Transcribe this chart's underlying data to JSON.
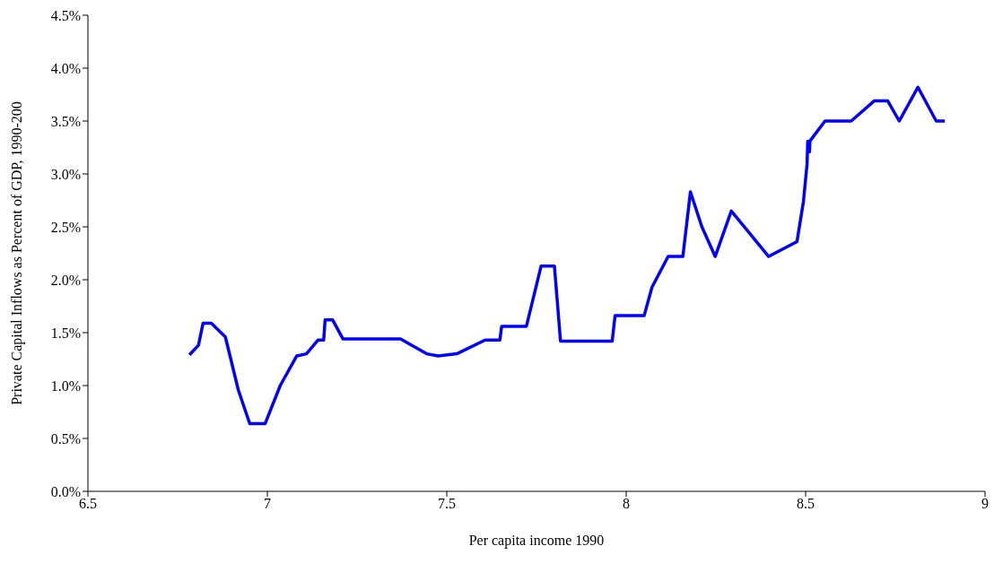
{
  "chart_data": {
    "type": "line",
    "xlabel": "Per capita income 1990",
    "ylabel": "Private Capital Inflows as Percent of GDP, 1990-200",
    "x": [
      6.783,
      6.808,
      6.821,
      6.844,
      6.883,
      6.919,
      6.951,
      6.994,
      7.036,
      7.082,
      7.109,
      7.141,
      7.157,
      7.161,
      7.182,
      7.211,
      7.371,
      7.444,
      7.476,
      7.528,
      7.607,
      7.648,
      7.653,
      7.722,
      7.763,
      7.8,
      7.817,
      7.961,
      7.969,
      8.05,
      8.072,
      8.117,
      8.158,
      8.179,
      8.211,
      8.248,
      8.293,
      8.397,
      8.476,
      8.494,
      8.504,
      8.506,
      8.511,
      8.512,
      8.554,
      8.627,
      8.691,
      8.729,
      8.761,
      8.813,
      8.864,
      8.888
    ],
    "series": [
      {
        "color": "#0000ff",
        "values": [
          1.29,
          1.38,
          1.59,
          1.59,
          1.46,
          0.96,
          0.64,
          0.64,
          1.0,
          1.28,
          1.3,
          1.43,
          1.43,
          1.62,
          1.62,
          1.44,
          1.44,
          1.3,
          1.28,
          1.3,
          1.43,
          1.43,
          1.56,
          1.56,
          2.13,
          2.13,
          1.42,
          1.42,
          1.66,
          1.66,
          1.93,
          2.22,
          2.22,
          2.83,
          2.5,
          2.22,
          2.65,
          2.22,
          2.36,
          2.74,
          3.09,
          3.31,
          3.21,
          3.31,
          3.5,
          3.5,
          3.69,
          3.69,
          3.5,
          3.82,
          3.5,
          3.5
        ]
      }
    ],
    "xlim": [
      6.5,
      9
    ],
    "xticks": [
      6.5,
      7,
      7.5,
      8,
      8.5,
      9
    ],
    "ylim": [
      0,
      4.5
    ],
    "yticks": [
      {
        "value": 0,
        "label": "0.0%"
      },
      {
        "value": 0.5,
        "label": "0.5%"
      },
      {
        "value": 1,
        "label": "1.0%"
      },
      {
        "value": 1.5,
        "label": "1.5%"
      },
      {
        "value": 2,
        "label": "2.0%"
      },
      {
        "value": 2.5,
        "label": "2.5%"
      },
      {
        "value": 3,
        "label": "3.0%"
      },
      {
        "value": 3.5,
        "label": "3.5%"
      },
      {
        "value": 4,
        "label": "4.0%"
      },
      {
        "value": 4.5,
        "label": "4.5%"
      }
    ],
    "grid": false,
    "legend": false,
    "marker": "none",
    "line_style": "solid"
  }
}
